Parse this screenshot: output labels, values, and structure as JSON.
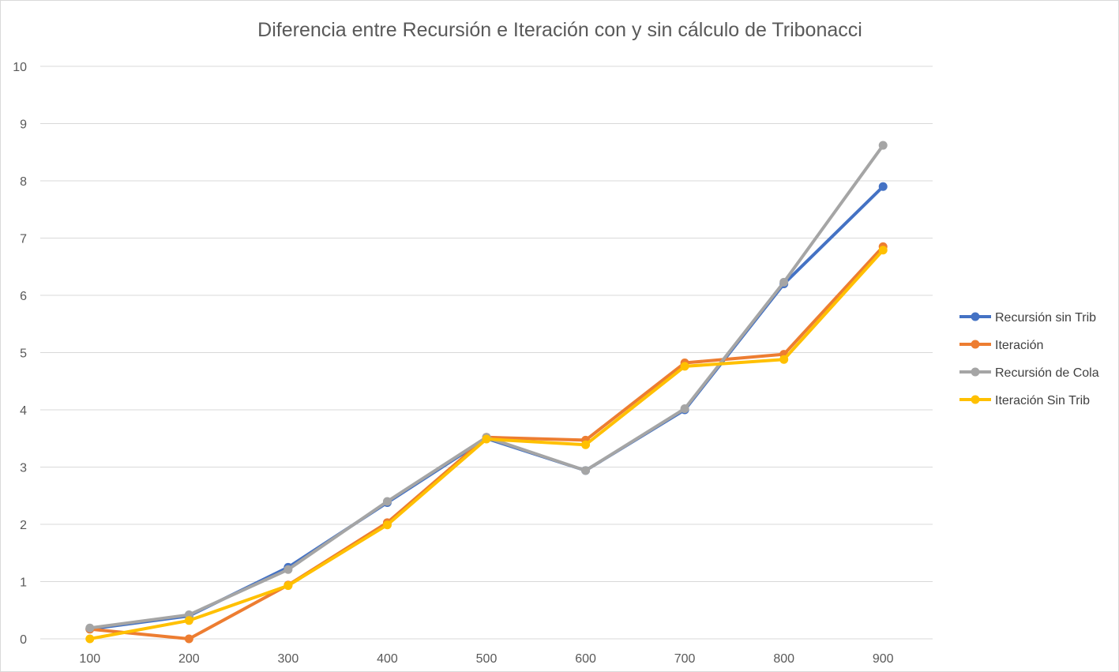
{
  "chart_data": {
    "type": "line",
    "title": "Diferencia entre Recursión e Iteración con y sin cálculo de Tribonacci",
    "xlabel": "",
    "ylabel": "",
    "categories": [
      "100",
      "200",
      "300",
      "400",
      "500",
      "600",
      "700",
      "800",
      "900"
    ],
    "ylim": [
      0,
      10
    ],
    "yticks": [
      "0",
      "1",
      "2",
      "3",
      "4",
      "5",
      "6",
      "7",
      "8",
      "9",
      "10"
    ],
    "grid": true,
    "legend_position": "right",
    "series": [
      {
        "name": "Recursión sin Trib",
        "color": "#4472c4",
        "values": [
          0.17,
          0.4,
          1.25,
          2.38,
          3.5,
          2.94,
          4.0,
          6.2,
          7.9
        ]
      },
      {
        "name": "Iteración",
        "color": "#ed7d31",
        "values": [
          0.17,
          0.0,
          0.94,
          2.03,
          3.52,
          3.47,
          4.82,
          4.97,
          6.85
        ]
      },
      {
        "name": "Recursión de Cola",
        "color": "#a5a5a5",
        "values": [
          0.19,
          0.42,
          1.21,
          2.4,
          3.52,
          2.94,
          4.02,
          6.23,
          8.62
        ]
      },
      {
        "name": "Iteración Sin Trib",
        "color": "#ffc000",
        "values": [
          0.0,
          0.32,
          0.93,
          1.99,
          3.49,
          3.39,
          4.76,
          4.88,
          6.79
        ]
      }
    ]
  }
}
